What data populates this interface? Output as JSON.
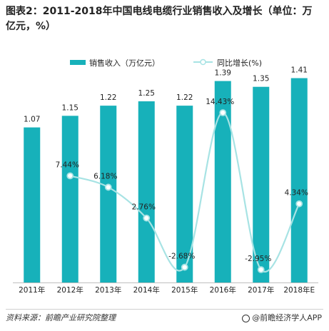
{
  "title": "图表2：2011-2018年中国电线电缆行业销售收入及增长（单位：万亿元，%）",
  "footer": {
    "source": "资料来源：前瞻产业研究院整理",
    "brand": "@前瞻经济学人APP"
  },
  "colors": {
    "bar": "#17b1ba",
    "line": "#a7e3e4",
    "marker_fill": "#ffffff",
    "text": "#222222"
  },
  "chart_data": {
    "type": "bar",
    "title": "图表2：2011-2018年中国电线电缆行业销售收入及增长（单位：万亿元，%）",
    "categories": [
      "2011年",
      "2012年",
      "2013年",
      "2014年",
      "2015年",
      "2016年",
      "2017年",
      "2018年E"
    ],
    "series": [
      {
        "name": "销售收入（万亿元）",
        "type": "bar",
        "values": [
          1.07,
          1.15,
          1.22,
          1.25,
          1.22,
          1.39,
          1.35,
          1.41
        ],
        "labels": [
          "1.07",
          "1.15",
          "1.22",
          "1.25",
          "1.22",
          "1.39",
          "1.35",
          "1.41"
        ]
      },
      {
        "name": "同比增长(%)",
        "type": "line",
        "smooth": true,
        "values": [
          null,
          7.44,
          6.18,
          2.76,
          -2.68,
          14.43,
          -2.95,
          4.34
        ],
        "labels": [
          null,
          "7.44%",
          "6.18%",
          "2.76%",
          "-2.68%",
          "14.43%",
          "-2.95%",
          "4.34%"
        ]
      }
    ],
    "bar_ylim": [
      0,
      1.5
    ],
    "line_ylim": [
      -4,
      17
    ],
    "legend": "top-center",
    "grid": false
  }
}
